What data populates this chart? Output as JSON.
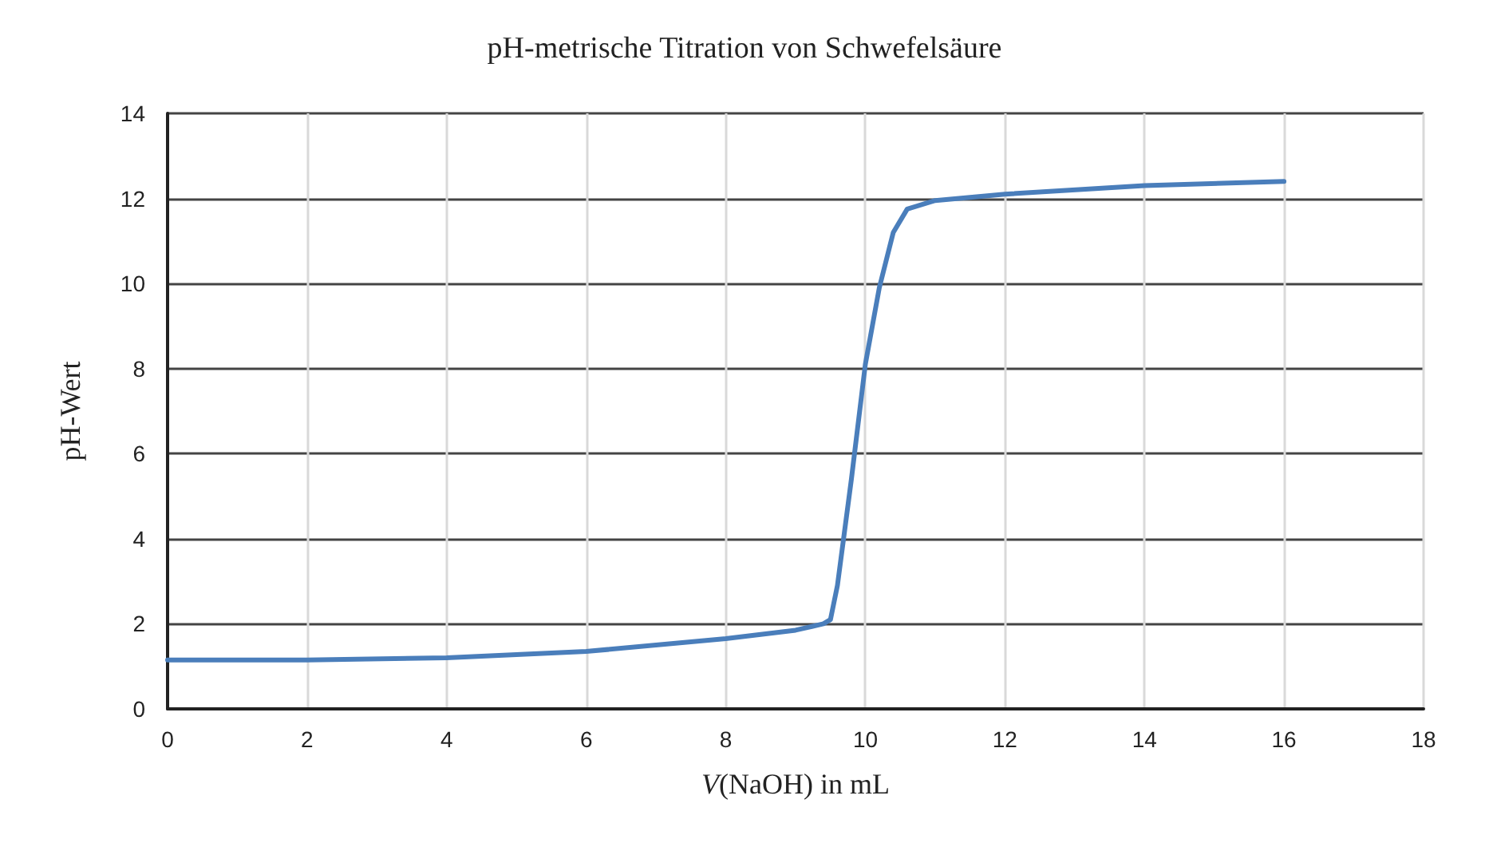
{
  "chart_data": {
    "type": "line",
    "title": "pH-metrische Titration von Schwefelsäure",
    "xlabel": "V(NaOH) in mL",
    "ylabel": "pH-Wert",
    "x": [
      0,
      2,
      4,
      6,
      8,
      9,
      9.4,
      9.5,
      9.6,
      9.8,
      10,
      10.2,
      10.4,
      10.6,
      11,
      12,
      14,
      16
    ],
    "series": [
      {
        "color": "#4a7ebb",
        "values": [
          1.15,
          1.15,
          1.2,
          1.35,
          1.65,
          1.85,
          2.0,
          2.1,
          2.9,
          5.4,
          8.1,
          9.9,
          11.2,
          11.75,
          11.95,
          12.1,
          12.3,
          12.4
        ]
      }
    ],
    "xlim": [
      0,
      18
    ],
    "xticks": [
      0,
      2,
      4,
      6,
      8,
      10,
      12,
      14,
      16,
      18
    ],
    "ylim": [
      0,
      14
    ],
    "yticks": [
      0,
      2,
      4,
      6,
      8,
      10,
      12,
      14
    ],
    "grid": true,
    "marker": "none",
    "line_style": "solid"
  }
}
